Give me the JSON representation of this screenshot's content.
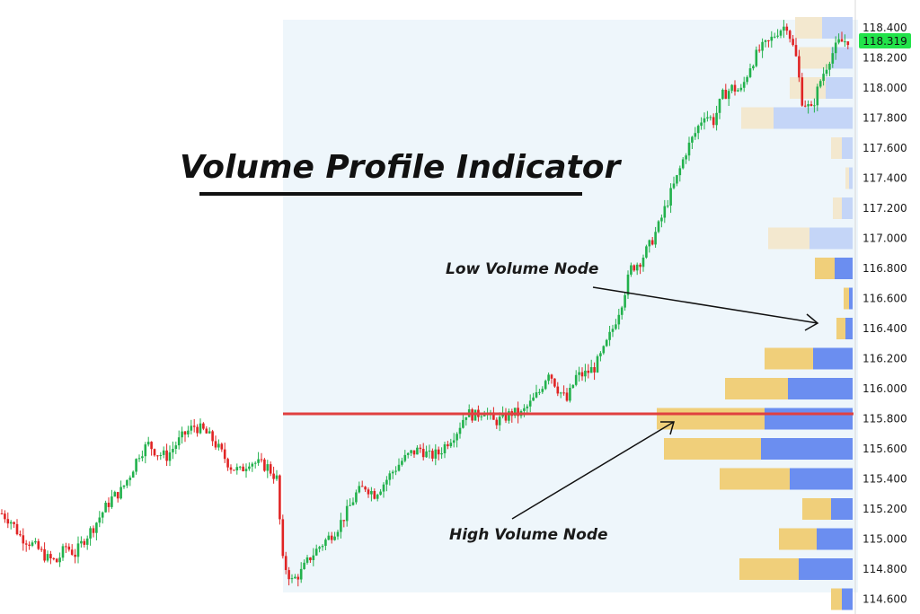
{
  "chart_data": {
    "type": "candlestick_with_volume_profile",
    "title": "Volume Profile Indicator",
    "annotations": {
      "low_volume_node": "Low Volume Node",
      "high_volume_node": "High Volume Node"
    },
    "y_axis": {
      "ylim": [
        14.6,
        118.47
      ],
      "ticks": [
        "118.400",
        "118.200",
        "118.000",
        "117.800",
        "117.600",
        "117.400",
        "117.200",
        "117.000",
        "116.800",
        "116.600",
        "116.400",
        "116.200",
        "116.000",
        "115.800",
        "115.600",
        "115.400",
        "115.200",
        "115.000",
        "114.800",
        "114.600"
      ]
    },
    "last_price": "118.319",
    "point_of_control_price": 115.84,
    "candles_close_path": [
      [
        0,
        115.17
      ],
      [
        3,
        115.12
      ],
      [
        6,
        115.02
      ],
      [
        9,
        114.98
      ],
      [
        12,
        114.93
      ],
      [
        15,
        114.87
      ],
      [
        18,
        114.85
      ],
      [
        21,
        114.95
      ],
      [
        24,
        114.9
      ],
      [
        27,
        115.0
      ],
      [
        30,
        115.08
      ],
      [
        33,
        115.18
      ],
      [
        36,
        115.27
      ],
      [
        39,
        115.32
      ],
      [
        42,
        115.43
      ],
      [
        45,
        115.57
      ],
      [
        48,
        115.63
      ],
      [
        51,
        115.57
      ],
      [
        54,
        115.55
      ],
      [
        57,
        115.63
      ],
      [
        60,
        115.7
      ],
      [
        63,
        115.75
      ],
      [
        66,
        115.72
      ],
      [
        69,
        115.66
      ],
      [
        72,
        115.57
      ],
      [
        75,
        115.48
      ],
      [
        78,
        115.45
      ],
      [
        81,
        115.52
      ],
      [
        84,
        115.5
      ],
      [
        87,
        115.48
      ],
      [
        90,
        115.4
      ],
      [
        92,
        114.85
      ],
      [
        95,
        114.72
      ],
      [
        98,
        114.78
      ],
      [
        101,
        114.88
      ],
      [
        104,
        114.95
      ],
      [
        107,
        115.01
      ],
      [
        110,
        115.08
      ],
      [
        113,
        115.18
      ],
      [
        116,
        115.3
      ],
      [
        119,
        115.35
      ],
      [
        122,
        115.3
      ],
      [
        125,
        115.37
      ],
      [
        128,
        115.45
      ],
      [
        131,
        115.52
      ],
      [
        134,
        115.57
      ],
      [
        137,
        115.6
      ],
      [
        140,
        115.55
      ],
      [
        143,
        115.57
      ],
      [
        146,
        115.65
      ],
      [
        149,
        115.72
      ],
      [
        152,
        115.84
      ],
      [
        155,
        115.82
      ],
      [
        158,
        115.86
      ],
      [
        161,
        115.78
      ],
      [
        164,
        115.8
      ],
      [
        167,
        115.84
      ],
      [
        170,
        115.83
      ],
      [
        173,
        115.9
      ],
      [
        176,
        115.98
      ],
      [
        179,
        116.12
      ],
      [
        182,
        116.0
      ],
      [
        185,
        115.92
      ],
      [
        188,
        116.08
      ],
      [
        191,
        116.1
      ],
      [
        194,
        116.14
      ],
      [
        197,
        116.25
      ],
      [
        200,
        116.4
      ],
      [
        203,
        116.58
      ],
      [
        206,
        116.8
      ],
      [
        209,
        116.85
      ],
      [
        212,
        116.95
      ],
      [
        215,
        117.08
      ],
      [
        218,
        117.25
      ],
      [
        221,
        117.4
      ],
      [
        224,
        117.58
      ],
      [
        227,
        117.7
      ],
      [
        230,
        117.83
      ],
      [
        233,
        117.78
      ],
      [
        236,
        117.95
      ],
      [
        239,
        118.0
      ],
      [
        242,
        117.98
      ],
      [
        245,
        118.15
      ],
      [
        248,
        118.25
      ],
      [
        251,
        118.3
      ],
      [
        254,
        118.38
      ],
      [
        257,
        118.42
      ],
      [
        260,
        118.2
      ],
      [
        262,
        117.92
      ],
      [
        265,
        117.85
      ],
      [
        268,
        118.05
      ],
      [
        271,
        118.2
      ],
      [
        274,
        118.3
      ],
      [
        277,
        118.32
      ]
    ],
    "volume_profile": [
      {
        "price": 118.4,
        "buy": 1.5,
        "sell": 1.7
      },
      {
        "price": 118.2,
        "buy": 1.8,
        "sell": 1.2
      },
      {
        "price": 118.0,
        "buy": 2.0,
        "sell": 1.5
      },
      {
        "price": 117.8,
        "buy": 1.8,
        "sell": 4.4
      },
      {
        "price": 117.6,
        "buy": 0.6,
        "sell": 0.6
      },
      {
        "price": 117.4,
        "buy": 0.2,
        "sell": 0.2
      },
      {
        "price": 117.2,
        "buy": 0.5,
        "sell": 0.6
      },
      {
        "price": 117.0,
        "buy": 2.3,
        "sell": 2.4
      },
      {
        "price": 116.8,
        "buy": 1.1,
        "sell": 1.0
      },
      {
        "price": 116.6,
        "buy": 0.3,
        "sell": 0.2
      },
      {
        "price": 116.4,
        "buy": 0.5,
        "sell": 0.4
      },
      {
        "price": 116.2,
        "buy": 2.7,
        "sell": 2.2
      },
      {
        "price": 116.0,
        "buy": 3.5,
        "sell": 3.6
      },
      {
        "price": 115.8,
        "buy": 6.0,
        "sell": 4.9
      },
      {
        "price": 115.6,
        "buy": 5.4,
        "sell": 5.1
      },
      {
        "price": 115.4,
        "buy": 3.9,
        "sell": 3.5
      },
      {
        "price": 115.2,
        "buy": 1.6,
        "sell": 1.2
      },
      {
        "price": 115.0,
        "buy": 2.1,
        "sell": 2.0
      },
      {
        "price": 114.8,
        "buy": 3.3,
        "sell": 3.0
      },
      {
        "price": 114.6,
        "buy": 0.6,
        "sell": 0.6
      }
    ],
    "colors": {
      "up_candle": "#22b14c",
      "down_candle": "#e02424",
      "background_shade": "#eef6fb",
      "profile_buy": "#f0cf7a",
      "profile_sell": "#6b8ef0",
      "profile_buy_light": "#f3e8cf",
      "profile_sell_light": "#c4d5f7",
      "poc_line": "#e04040",
      "price_tag": "#22e34a"
    }
  }
}
